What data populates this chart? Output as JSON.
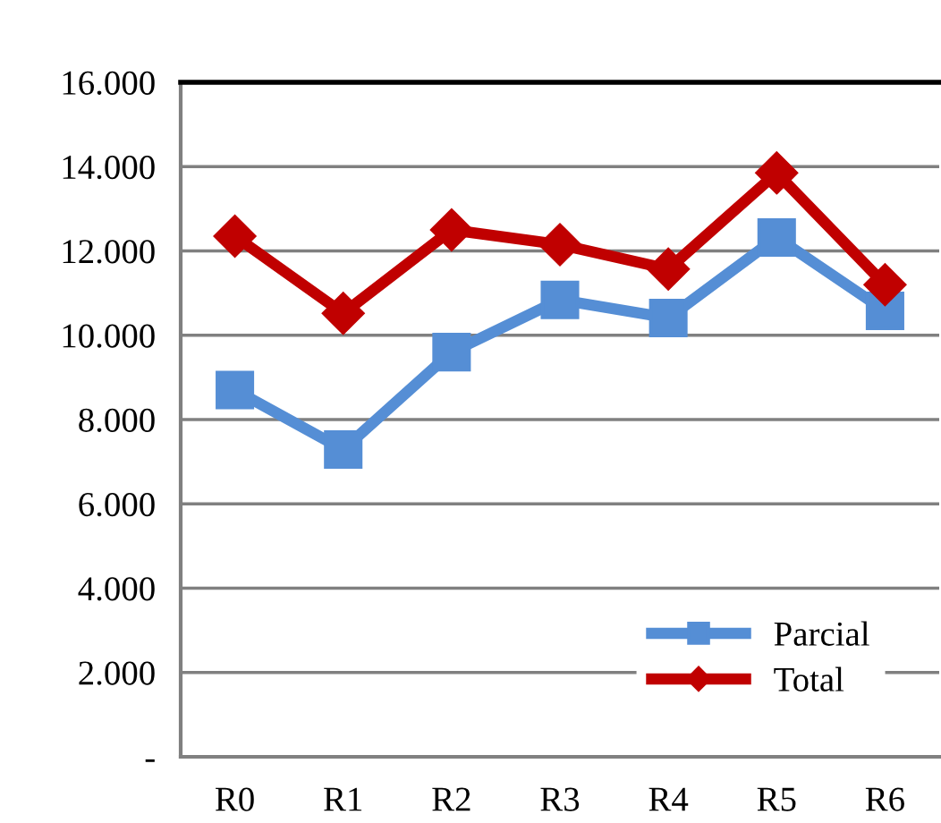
{
  "chart_data": {
    "type": "line",
    "categories": [
      "R0",
      "R1",
      "R2",
      "R3",
      "R4",
      "R5",
      "R6"
    ],
    "series": [
      {
        "name": "Parcial",
        "color": "#558ed5",
        "marker": "square",
        "values": [
          8700,
          7290,
          9600,
          10840,
          10410,
          12320,
          10580
        ]
      },
      {
        "name": "Total",
        "color": "#c00000",
        "marker": "diamond",
        "values": [
          12350,
          10520,
          12500,
          12150,
          11570,
          13850,
          11200
        ]
      }
    ],
    "ylim": [
      0,
      16000
    ],
    "yticks": [
      {
        "value": 0,
        "label": "-"
      },
      {
        "value": 2000,
        "label": "2.000"
      },
      {
        "value": 4000,
        "label": "4.000"
      },
      {
        "value": 6000,
        "label": "6.000"
      },
      {
        "value": 8000,
        "label": "8.000"
      },
      {
        "value": 10000,
        "label": "10.000"
      },
      {
        "value": 12000,
        "label": "12.000"
      },
      {
        "value": 14000,
        "label": "14.000"
      },
      {
        "value": 16000,
        "label": "16.000"
      }
    ],
    "grid": "y",
    "legend": "bottom right"
  }
}
